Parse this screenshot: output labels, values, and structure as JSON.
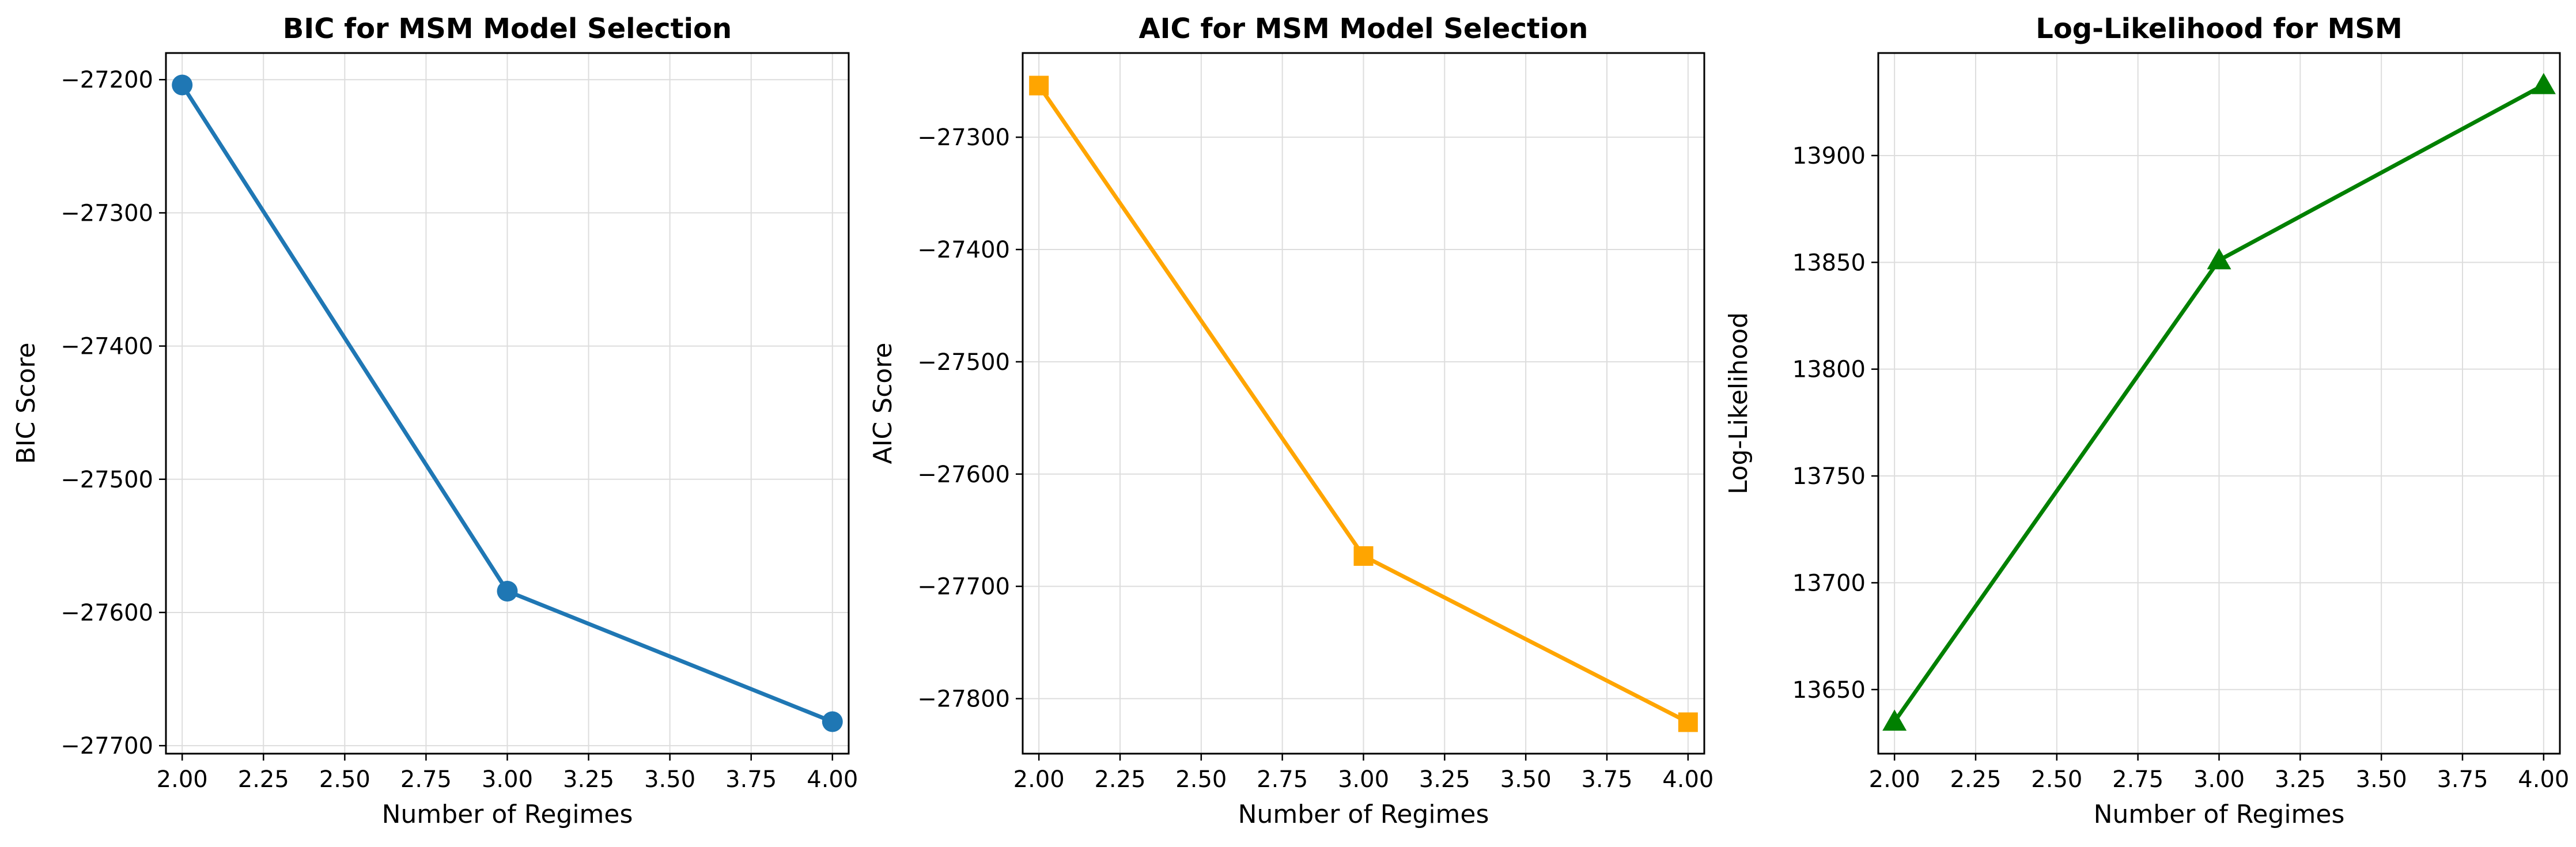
{
  "chart_data": [
    {
      "type": "line",
      "title": "BIC for MSM Model Selection",
      "xlabel": "Number of Regimes",
      "ylabel": "BIC Score",
      "x": [
        2,
        3,
        4
      ],
      "series": [
        {
          "values": [
            -27204,
            -27584,
            -27682
          ],
          "color": "#1f77b4",
          "marker": "circle"
        }
      ],
      "xlim": [
        1.95,
        4.05
      ],
      "ylim": [
        -27706,
        -27180
      ],
      "xticks": [
        2.0,
        2.25,
        2.5,
        2.75,
        3.0,
        3.25,
        3.5,
        3.75,
        4.0
      ],
      "xtick_labels": [
        "2.00",
        "2.25",
        "2.50",
        "2.75",
        "3.00",
        "3.25",
        "3.50",
        "3.75",
        "4.00"
      ],
      "yticks": [
        -27200,
        -27300,
        -27400,
        -27500,
        -27600,
        -27700
      ],
      "ytick_labels": [
        "−27200",
        "−27300",
        "−27400",
        "−27500",
        "−27600",
        "−27700"
      ],
      "grid": true
    },
    {
      "type": "line",
      "title": "AIC for MSM Model Selection",
      "xlabel": "Number of Regimes",
      "ylabel": "AIC Score",
      "x": [
        2,
        3,
        4
      ],
      "series": [
        {
          "values": [
            -27254,
            -27673,
            -27821
          ],
          "color": "#ffa500",
          "marker": "square"
        }
      ],
      "xlim": [
        1.95,
        4.05
      ],
      "ylim": [
        -27849,
        -27225
      ],
      "xticks": [
        2.0,
        2.25,
        2.5,
        2.75,
        3.0,
        3.25,
        3.5,
        3.75,
        4.0
      ],
      "xtick_labels": [
        "2.00",
        "2.25",
        "2.50",
        "2.75",
        "3.00",
        "3.25",
        "3.50",
        "3.75",
        "4.00"
      ],
      "yticks": [
        -27300,
        -27400,
        -27500,
        -27600,
        -27700,
        -27800
      ],
      "ytick_labels": [
        "−27300",
        "−27400",
        "−27500",
        "−27600",
        "−27700",
        "−27800"
      ],
      "grid": true
    },
    {
      "type": "line",
      "title": "Log-Likelihood for MSM",
      "xlabel": "Number of Regimes",
      "ylabel": "Log-Likelihood",
      "x": [
        2,
        3,
        4
      ],
      "series": [
        {
          "values": [
            13635,
            13851,
            13933
          ],
          "color": "#008000",
          "marker": "triangle"
        }
      ],
      "xlim": [
        1.95,
        4.05
      ],
      "ylim": [
        13620,
        13948
      ],
      "xticks": [
        2.0,
        2.25,
        2.5,
        2.75,
        3.0,
        3.25,
        3.5,
        3.75,
        4.0
      ],
      "xtick_labels": [
        "2.00",
        "2.25",
        "2.50",
        "2.75",
        "3.00",
        "3.25",
        "3.50",
        "3.75",
        "4.00"
      ],
      "yticks": [
        13650,
        13700,
        13750,
        13800,
        13850,
        13900
      ],
      "ytick_labels": [
        "13650",
        "13700",
        "13750",
        "13800",
        "13850",
        "13900"
      ],
      "grid": true
    }
  ]
}
